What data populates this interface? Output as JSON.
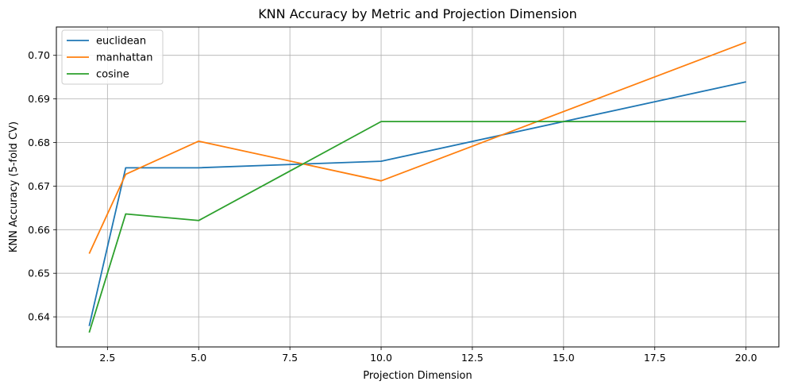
{
  "chart_data": {
    "type": "line",
    "title": "KNN Accuracy by Metric and Projection Dimension",
    "xlabel": "Projection Dimension",
    "ylabel": "KNN Accuracy (5-fold CV)",
    "x": [
      2,
      3,
      5,
      10,
      20
    ],
    "xlim": [
      1.1,
      20.9
    ],
    "ylim": [
      0.6331,
      0.7065
    ],
    "xticks": [
      2.5,
      5.0,
      7.5,
      10.0,
      12.5,
      15.0,
      17.5,
      20.0
    ],
    "xtick_labels": [
      "2.5",
      "5.0",
      "7.5",
      "10.0",
      "12.5",
      "15.0",
      "17.5",
      "20.0"
    ],
    "yticks": [
      0.64,
      0.65,
      0.66,
      0.67,
      0.68,
      0.69,
      0.7
    ],
    "ytick_labels": [
      "0.64",
      "0.65",
      "0.66",
      "0.67",
      "0.68",
      "0.69",
      "0.70"
    ],
    "grid": true,
    "legend_position": "top-left",
    "series": [
      {
        "name": "euclidean",
        "color": "#1f77b4",
        "values": [
          0.6379,
          0.6742,
          0.6742,
          0.6757,
          0.6939
        ]
      },
      {
        "name": "manhattan",
        "color": "#ff7f0e",
        "values": [
          0.6545,
          0.6727,
          0.6803,
          0.6712,
          0.703
        ]
      },
      {
        "name": "cosine",
        "color": "#2ca02c",
        "values": [
          0.6364,
          0.6636,
          0.6621,
          0.6848,
          0.6848
        ]
      }
    ]
  }
}
